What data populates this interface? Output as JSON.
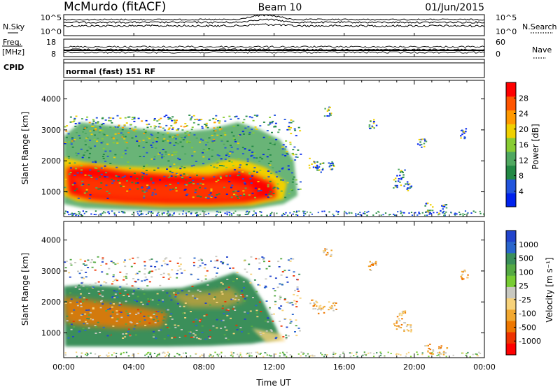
{
  "header": {
    "station": "McMurdo (fitACF)",
    "beam": "Beam 10",
    "date": "01/Jun/2015"
  },
  "left_labels": {
    "nsky": "N.Sky",
    "freq": "Freq.",
    "freq_unit": "[MHz]",
    "cpid": "CPID"
  },
  "right_labels": {
    "nsearch": "N.Search",
    "nave": "Nave"
  },
  "cpid_text": "normal (fast) 151 RF",
  "colors": {
    "power": [
      "#0022ee",
      "#2255dd",
      "#228844",
      "#4fa860",
      "#88cc33",
      "#f0d000",
      "#ff9900",
      "#ff5500",
      "#ff0000"
    ],
    "velocity": [
      "#2244cc",
      "#2a66cc",
      "#3a8f5a",
      "#55aa44",
      "#77cc33",
      "#c8c8c0",
      "#f7d27a",
      "#f2a830",
      "#ee7700",
      "#ee3300",
      "#ff0000"
    ]
  },
  "chart_data": [
    {
      "type": "line",
      "name": "noise-panel",
      "left_ticks": [
        "10^5",
        "10^0"
      ],
      "right_ticks": [
        "10^5",
        "10^0"
      ]
    },
    {
      "type": "line",
      "name": "freq-panel",
      "left_ticks": [
        "18",
        "8"
      ],
      "right_ticks": [
        "60",
        "0"
      ]
    },
    {
      "type": "heatmap",
      "name": "power",
      "ylabel": "Slant Range [km]",
      "ylim": [
        200,
        4600
      ],
      "yticks": [
        1000,
        2000,
        3000,
        4000
      ],
      "xlim": [
        0,
        24
      ],
      "colorbar": {
        "label": "Power [dB]",
        "ticks": [
          4,
          8,
          12,
          16,
          20,
          24,
          28
        ],
        "range": [
          0,
          32
        ]
      }
    },
    {
      "type": "heatmap",
      "name": "velocity",
      "ylabel": "Slant Range [km]",
      "ylim": [
        200,
        4600
      ],
      "yticks": [
        1000,
        2000,
        3000,
        4000
      ],
      "xlim": [
        0,
        24
      ],
      "xticks": [
        "00:00",
        "04:00",
        "08:00",
        "12:00",
        "16:00",
        "20:00",
        "00:00"
      ],
      "xlabel": "Time UT",
      "colorbar": {
        "label": "Velocity [m s⁻¹]",
        "ticks": [
          "1000",
          "500",
          "100",
          "25",
          "-25",
          "-100",
          "-500",
          "-1000"
        ]
      }
    }
  ]
}
